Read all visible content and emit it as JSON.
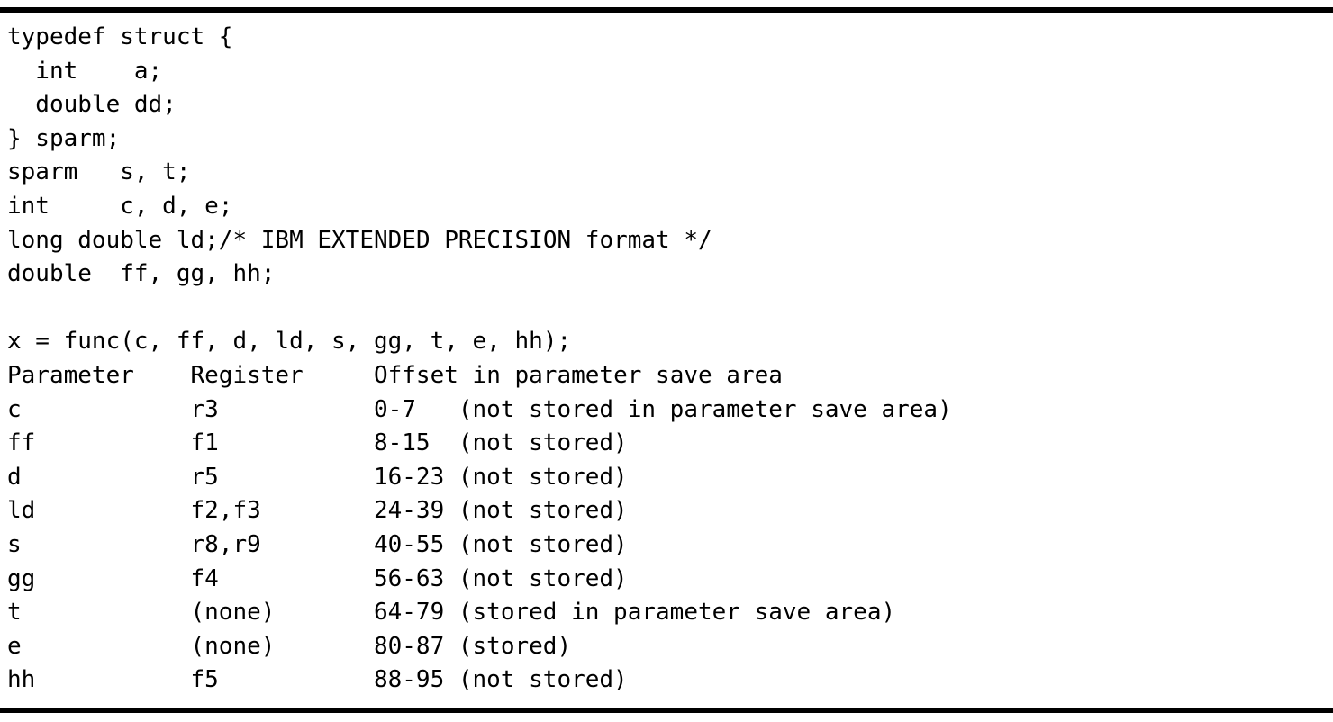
{
  "figure": {
    "code_lines": [
      "typedef struct {",
      "  int    a;",
      "  double dd;",
      "} sparm;",
      "sparm   s, t;",
      "int     c, d, e;",
      "long double ld;/* IBM EXTENDED PRECISION format */",
      "double  ff, gg, hh;",
      "",
      "x = func(c, ff, d, ld, s, gg, t, e, hh);"
    ],
    "table": {
      "header": {
        "parameter": "Parameter",
        "register": "Register",
        "offset": "Offset in parameter save area"
      },
      "rows": [
        {
          "parameter": "c",
          "register": "r3",
          "offset": "0-7",
          "note": "(not stored in parameter save area)"
        },
        {
          "parameter": "ff",
          "register": "f1",
          "offset": "8-15",
          "note": "(not stored)"
        },
        {
          "parameter": "d",
          "register": "r5",
          "offset": "16-23",
          "note": "(not stored)"
        },
        {
          "parameter": "ld",
          "register": "f2,f3",
          "offset": "24-39",
          "note": "(not stored)"
        },
        {
          "parameter": "s",
          "register": "r8,r9",
          "offset": "40-55",
          "note": "(not stored)"
        },
        {
          "parameter": "gg",
          "register": "f4",
          "offset": "56-63",
          "note": "(not stored)"
        },
        {
          "parameter": "t",
          "register": "(none)",
          "offset": "64-79",
          "note": "(stored in parameter save area)"
        },
        {
          "parameter": "e",
          "register": "(none)",
          "offset": "80-87",
          "note": "(stored)"
        },
        {
          "parameter": "hh",
          "register": "f5",
          "offset": "88-95",
          "note": "(not stored)"
        }
      ]
    },
    "colors": {
      "text": "#000000",
      "rule": "#000000",
      "background": "#ffffff"
    }
  }
}
